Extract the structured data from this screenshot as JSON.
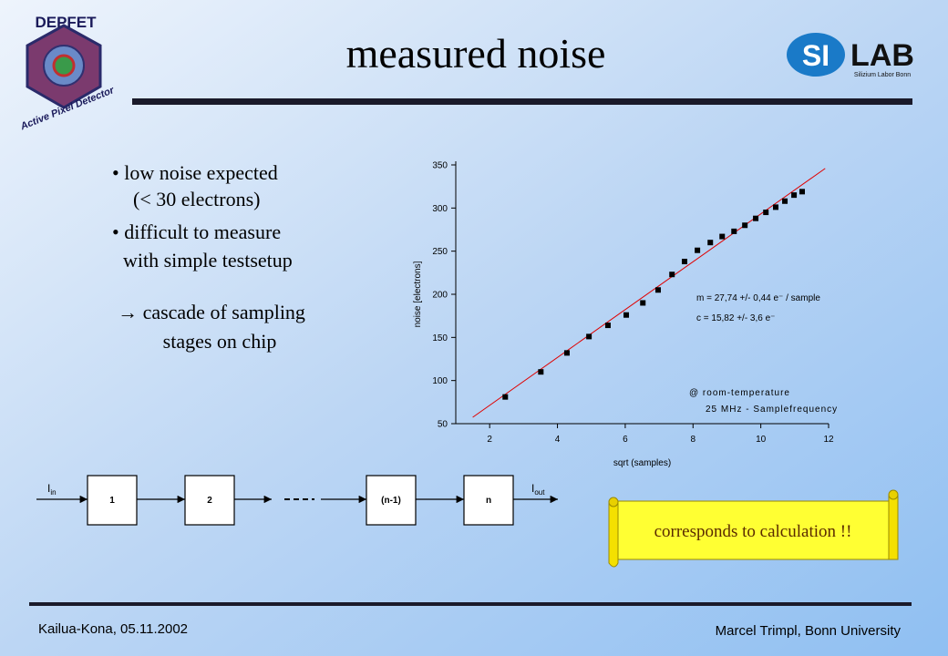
{
  "title": "measured noise",
  "logo_left": {
    "top": "DEPFET",
    "bottom": "Active Pixel Detector"
  },
  "logo_right": {
    "si": "SI",
    "lab": "LAB",
    "sub": "Silizium Labor Bonn"
  },
  "bullets": [
    "• low noise expected",
    "(< 30 electrons)",
    "• difficult to measure",
    "with simple testsetup"
  ],
  "conclusion": [
    "→ cascade of sampling",
    "stages on chip"
  ],
  "diagram": {
    "input": {
      "main": "I",
      "sub": "in"
    },
    "output": {
      "main": "I",
      "sub": "out"
    },
    "stages": [
      "1",
      "2",
      "(n-1)",
      "n"
    ]
  },
  "banner": "corresponds to calculation !!",
  "footer": {
    "left": "Kailua-Kona, 05.11.2002",
    "right": "Marcel Trimpl, Bonn University"
  },
  "chart_data": {
    "type": "scatter",
    "xlabel": "sqrt (samples)",
    "ylabel": "noise [electrons]",
    "xlim": [
      1,
      12
    ],
    "ylim": [
      50,
      350
    ],
    "xticks": [
      2,
      4,
      6,
      8,
      10,
      12
    ],
    "yticks": [
      50,
      100,
      150,
      200,
      250,
      300,
      350
    ],
    "color": "#000000",
    "x": [
      2.46,
      3.51,
      4.28,
      4.93,
      5.49,
      6.03,
      6.52,
      6.97,
      7.38,
      7.75,
      8.13,
      8.51,
      8.86,
      9.21,
      9.53,
      9.85,
      10.15,
      10.44,
      10.71,
      10.98,
      11.22
    ],
    "values": [
      81,
      110,
      132,
      151,
      164,
      176,
      190,
      205,
      223,
      238,
      251,
      260,
      267,
      273,
      280,
      288,
      295,
      301,
      308,
      315,
      319
    ],
    "fit_line": {
      "x": [
        1.5,
        11.9
      ],
      "values": [
        57.4,
        345.9
      ],
      "color": "#e00000"
    },
    "annotations": [
      "m = 27,74 +/- 0,44 e⁻ / sample",
      "c = 15,82 +/- 3,6  e⁻",
      "@ room-temperature",
      "25 MHz - Samplefrequency"
    ]
  }
}
